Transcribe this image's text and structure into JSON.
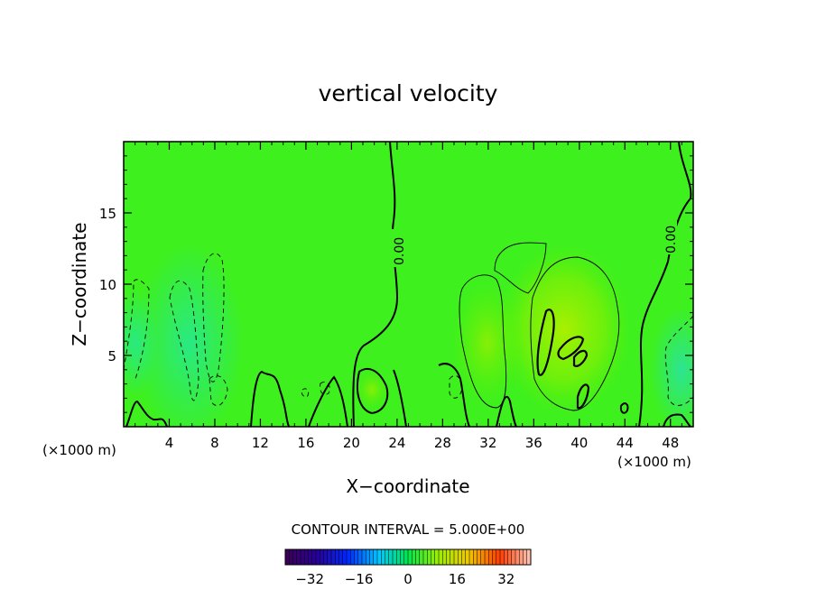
{
  "chart_data": {
    "type": "heatmap",
    "title": "vertical velocity",
    "xlabel": "X−coordinate",
    "ylabel": "Z−coordinate",
    "x_unit_left": "(×1000 m)",
    "x_unit_right": "(×1000 m)",
    "xlim": [
      0,
      50
    ],
    "ylim": [
      0,
      20
    ],
    "x_ticks": [
      4,
      8,
      12,
      16,
      20,
      24,
      28,
      32,
      36,
      40,
      44,
      48
    ],
    "y_ticks": [
      5,
      10,
      15
    ],
    "contour_interval_text": "CONTOUR INTERVAL = 5.000E+00",
    "zero_contour_labels": [
      "0.00",
      "0.00"
    ],
    "colorbar": {
      "range": [
        -40,
        40
      ],
      "tick_values": [
        -32,
        -16,
        0,
        16,
        32
      ],
      "tick_labels": [
        "−32",
        "−16",
        "0",
        "16",
        "32"
      ]
    }
  }
}
